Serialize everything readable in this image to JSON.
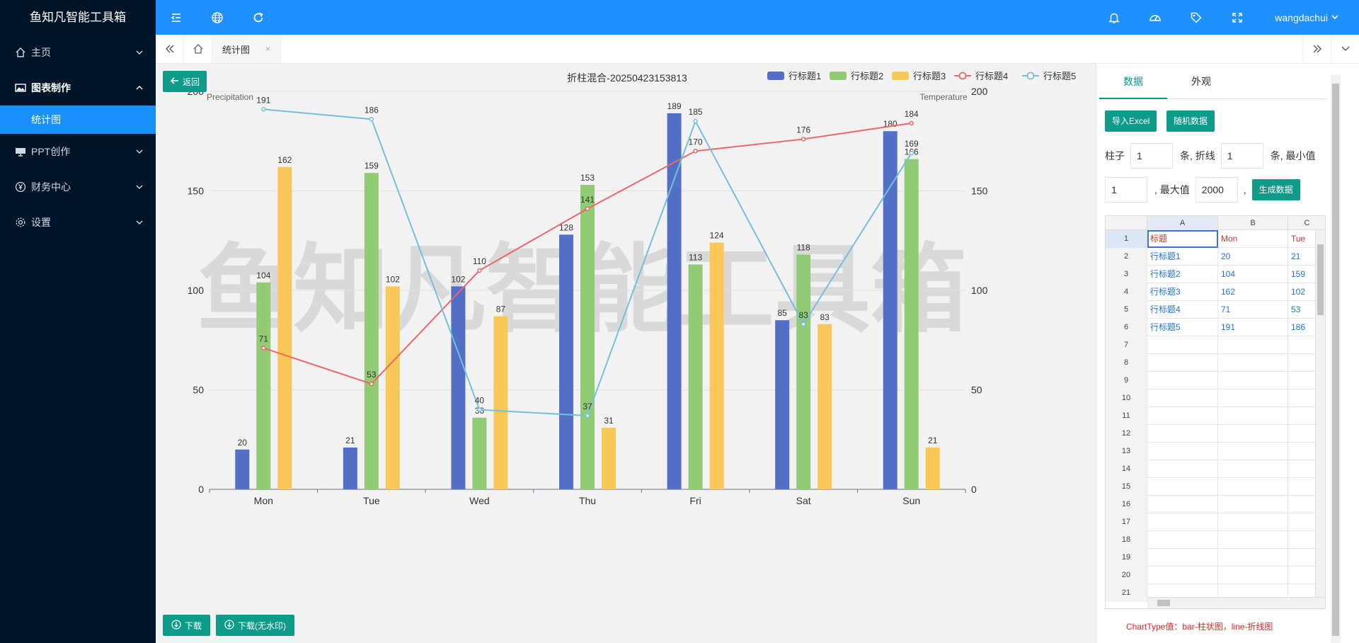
{
  "sidebar": {
    "brand": "鱼知凡智能工具箱",
    "items": [
      {
        "label": "主页",
        "icon": "home-icon"
      },
      {
        "label": "图表制作",
        "icon": "image-icon",
        "open": true
      },
      {
        "label": "PPT创作",
        "icon": "presentation-icon"
      },
      {
        "label": "财务中心",
        "icon": "yen-icon"
      },
      {
        "label": "设置",
        "icon": "gear-icon"
      }
    ],
    "subitems": [
      {
        "label": "统计图"
      }
    ]
  },
  "header": {
    "user": "wangdachui",
    "icons": [
      "menu-fold-icon",
      "globe-icon",
      "refresh-icon",
      "bell-icon",
      "dashboard-icon",
      "tag-icon",
      "fullscreen-icon"
    ]
  },
  "tabs": [
    {
      "label": "统计图",
      "close": "×"
    }
  ],
  "actions": {
    "back": "返回",
    "download": "下载",
    "download_nowm": "下载(无水印)"
  },
  "chart_data": {
    "type": "bar",
    "title": "折柱混合-20250423153813",
    "watermark": "鱼知凡智能工具箱",
    "ylabel": "Precipitation",
    "y2label": "Temperature",
    "ylim": [
      0,
      200
    ],
    "y2lim": [
      0,
      200
    ],
    "yticks": [
      "0",
      "50",
      "100",
      "150",
      "200"
    ],
    "categories": [
      "Mon",
      "Tue",
      "Wed",
      "Thu",
      "Fri",
      "Sat",
      "Sun"
    ],
    "series": [
      {
        "name": "行标题1",
        "type": "bar",
        "color": "#5470c6",
        "values": [
          20,
          21,
          102,
          128,
          189,
          85,
          180
        ]
      },
      {
        "name": "行标题2",
        "type": "bar",
        "color": "#91cc75",
        "values": [
          104,
          159,
          36,
          153,
          113,
          118,
          166
        ]
      },
      {
        "name": "行标题3",
        "type": "bar",
        "color": "#fac858",
        "values": [
          162,
          102,
          87,
          31,
          124,
          83,
          21
        ]
      },
      {
        "name": "行标题4",
        "type": "line",
        "color": "#ee6666",
        "values": [
          71,
          53,
          110,
          141,
          170,
          176,
          184
        ]
      },
      {
        "name": "行标题5",
        "type": "line",
        "color": "#73c0de",
        "values": [
          191,
          186,
          40,
          37,
          185,
          83,
          169
        ]
      }
    ],
    "legend": "top-right",
    "grid": true
  },
  "panel": {
    "tabs": [
      "数据",
      "外观"
    ],
    "import_excel": "导入Excel",
    "random_data": "随机数据",
    "bar_label": "柱子",
    "bar_count": "1",
    "line_label": "条, 折线",
    "line_count": "1",
    "min_label": "条, 最小值",
    "min_value": "1",
    "max_label": ", 最大值",
    "max_value": "2000",
    "comma": ",",
    "generate": "生成数据",
    "note": "ChartType值：bar-柱状图，line-折线图"
  },
  "sheet": {
    "columns": [
      "A",
      "B",
      "C"
    ],
    "rows": [
      [
        "1",
        "标题",
        "Mon",
        "Tue"
      ],
      [
        "2",
        "行标题1",
        "20",
        "21"
      ],
      [
        "3",
        "行标题2",
        "104",
        "159"
      ],
      [
        "4",
        "行标题3",
        "162",
        "102"
      ],
      [
        "5",
        "行标题4",
        "71",
        "53"
      ],
      [
        "6",
        "行标题5",
        "191",
        "186"
      ],
      [
        "7",
        "",
        "",
        ""
      ],
      [
        "8",
        "",
        "",
        ""
      ],
      [
        "9",
        "",
        "",
        ""
      ],
      [
        "10",
        "",
        "",
        ""
      ],
      [
        "11",
        "",
        "",
        ""
      ],
      [
        "12",
        "",
        "",
        ""
      ],
      [
        "13",
        "",
        "",
        ""
      ],
      [
        "14",
        "",
        "",
        ""
      ],
      [
        "15",
        "",
        "",
        ""
      ],
      [
        "16",
        "",
        "",
        ""
      ],
      [
        "17",
        "",
        "",
        ""
      ],
      [
        "18",
        "",
        "",
        ""
      ],
      [
        "19",
        "",
        "",
        ""
      ],
      [
        "20",
        "",
        "",
        ""
      ],
      [
        "21",
        "",
        "",
        ""
      ]
    ]
  }
}
